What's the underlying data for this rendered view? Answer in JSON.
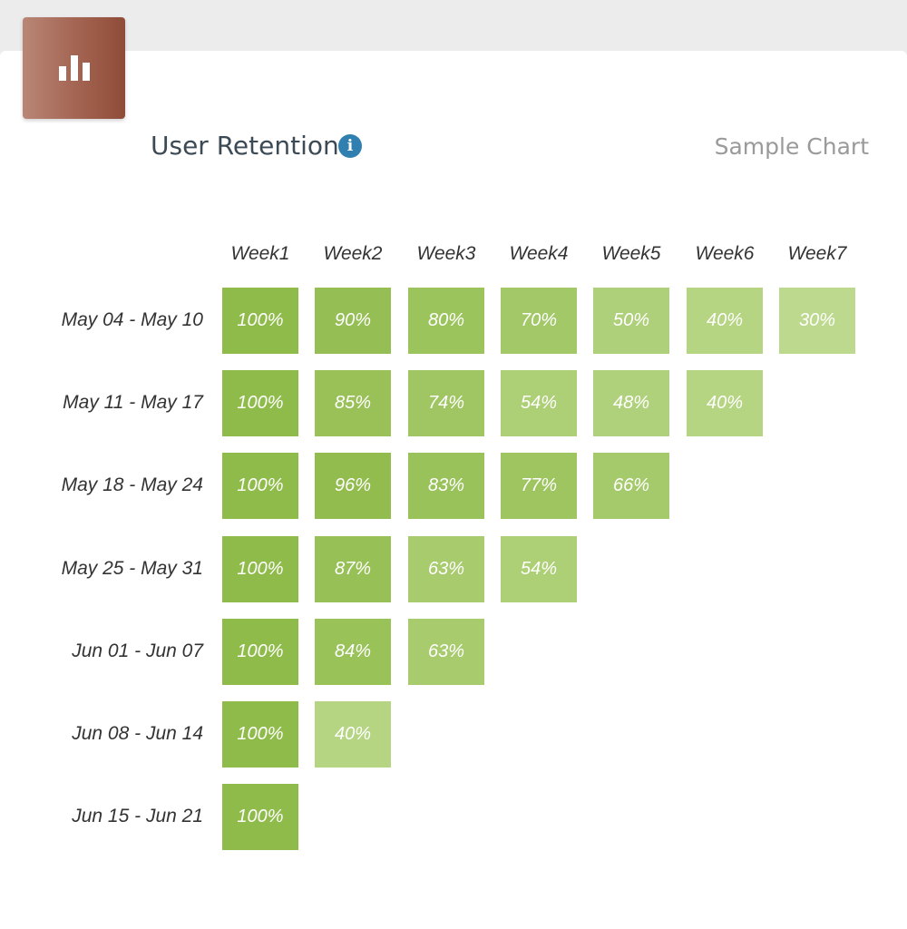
{
  "header": {
    "title": "User Retention",
    "subtitle": "Sample Chart",
    "info_glyph": "i",
    "badge_icon": "bar-chart-icon",
    "badge_color": "#a56654",
    "info_color": "#2f7fb0"
  },
  "chart_data": {
    "type": "heatmap",
    "title": "User Retention",
    "columns": [
      "Week1",
      "Week2",
      "Week3",
      "Week4",
      "Week5",
      "Week6",
      "Week7"
    ],
    "rows": [
      {
        "label": "May 04 - May 10",
        "values": [
          100,
          90,
          80,
          70,
          50,
          40,
          30
        ]
      },
      {
        "label": "May 11 - May 17",
        "values": [
          100,
          85,
          74,
          54,
          48,
          40
        ]
      },
      {
        "label": "May 18 - May 24",
        "values": [
          100,
          96,
          83,
          77,
          66
        ]
      },
      {
        "label": "May 25 - May 31",
        "values": [
          100,
          87,
          63,
          54
        ]
      },
      {
        "label": "Jun 01 - Jun 07",
        "values": [
          100,
          84,
          63
        ]
      },
      {
        "label": "Jun 08 - Jun 14",
        "values": [
          100,
          40
        ]
      },
      {
        "label": "Jun 15 - Jun 21",
        "values": [
          100
        ]
      }
    ],
    "value_suffix": "%",
    "color_high": "#8fbb4a",
    "color_low": "#bcd98d"
  }
}
